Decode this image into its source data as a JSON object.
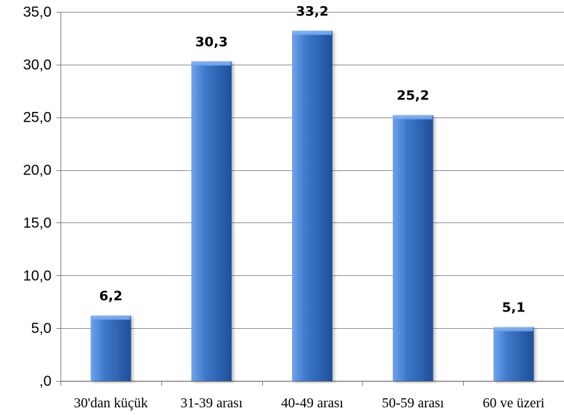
{
  "chart_data": {
    "type": "bar",
    "title": "",
    "xlabel": "",
    "ylabel": "",
    "categories": [
      "30'dan küçük",
      "31-39 arası",
      "40-49 arası",
      "50-59 arası",
      "60 ve üzeri"
    ],
    "values": [
      6.2,
      30.3,
      33.2,
      25.2,
      5.1
    ],
    "data_labels": [
      "6,2",
      "30,3",
      "33,2",
      "25,2",
      "5,1"
    ],
    "ylim": [
      0,
      35
    ],
    "yticks": [
      0,
      5,
      10,
      15,
      20,
      25,
      30,
      35
    ],
    "ytick_labels": [
      ",0",
      "5,0",
      "10,0",
      "15,0",
      "20,0",
      "25,0",
      "30,0",
      "35,0"
    ],
    "grid": "horizontal",
    "legend": "none",
    "bar_style": "3d-gradient",
    "colors": {
      "bar_light": "#6fa3ec",
      "bar_main": "#3d78c9",
      "bar_dark": "#1f4f99",
      "bar_top": "#8fbaf3",
      "grid": "#8c8c8c",
      "axis": "#7f7f7f"
    }
  }
}
